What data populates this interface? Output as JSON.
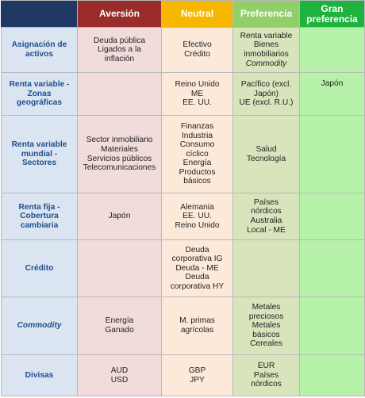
{
  "colors": {
    "corner": "#1f3864",
    "aversion": "#9b2c2c",
    "neutral": "#f5b700",
    "preference": "#92cf6b",
    "strong_preference": "#1db33c"
  },
  "headers": {
    "aversion": "Aversión",
    "neutral": "Neutral",
    "preference": "Preferencia",
    "strong_preference": "Gran\npreferencia"
  },
  "rows": [
    {
      "label": "Asignación de\nactivos",
      "aversion": "Deuda pública\nLigados a la\ninflación",
      "neutral": "Efectivo\nCrédito",
      "preference": "Renta variable\nBienes\ninmobiliarios",
      "preference_italic": "Commodity",
      "strong": ""
    },
    {
      "label": "Renta variable -\nZonas\ngeográficas",
      "aversion": "",
      "neutral": "Reino Unido\nME\nEE. UU.",
      "preference": "Pacífico (excl.\nJapón)\nUE (excl. R.U.)",
      "strong": "Japón"
    },
    {
      "label": "Renta variable\nmundial -\nSectores",
      "aversion": "Sector inmobiliario\nMateriales\nServicios públicos\nTelecomunicaciones",
      "neutral": "Finanzas\nIndustria\nConsumo\ncíclico\nEnergía\nProductos\nbásicos",
      "preference": "Salud\nTecnología",
      "strong": ""
    },
    {
      "label": "Renta fija -\nCobertura\ncambiaria",
      "aversion": "Japón",
      "neutral": "Alemania\nEE. UU.\nReino Unido",
      "preference": "Países\nnórdicos\nAustralia\nLocal - ME",
      "strong": ""
    },
    {
      "label": "Crédito",
      "aversion": "",
      "neutral": "Deuda\ncorporativa IG\nDeuda - ME\nDeuda\ncorporativa HY",
      "preference": "",
      "strong": ""
    },
    {
      "label": "Commodity",
      "aversion": "Energía\nGanado",
      "neutral": "M. primas\nagrícolas",
      "preference": "Metales\npreciosos\nMetales\nbásicos\nCereales",
      "strong": ""
    },
    {
      "label": "Divisas",
      "aversion": "AUD\nUSD",
      "neutral": "GBP\nJPY",
      "preference": "EUR\nPaíses\nnórdicos",
      "strong": ""
    }
  ]
}
